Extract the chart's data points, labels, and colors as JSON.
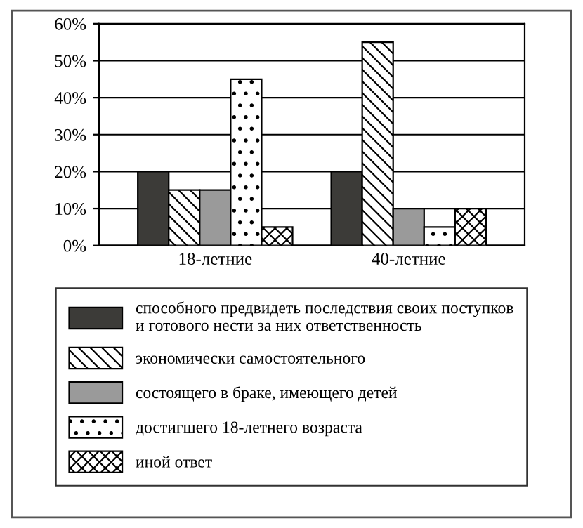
{
  "chart_data": {
    "type": "bar",
    "categories": [
      "18-летние",
      "40-летние"
    ],
    "series": [
      {
        "name": "способного предвидеть последствия своих поступков\nи готового нести за них ответственность",
        "color": "#3c3b38",
        "values": [
          20,
          20
        ]
      },
      {
        "name": "экономически самостоятельного",
        "color": "#000000",
        "values": [
          15,
          55
        ]
      },
      {
        "name": "состоящего в браке, имеющего детей",
        "color": "#9a9a9a",
        "values": [
          15,
          10
        ]
      },
      {
        "name": "достигшего 18-летнего возраста",
        "color": "#000000",
        "values": [
          45,
          5
        ]
      },
      {
        "name": "иной ответ",
        "color": "#000000",
        "values": [
          5,
          10
        ]
      }
    ],
    "ylim": [
      0,
      60
    ],
    "yticks": [
      {
        "value": 0,
        "label": "0%"
      },
      {
        "value": 10,
        "label": "10%"
      },
      {
        "value": 20,
        "label": "20%"
      },
      {
        "value": 30,
        "label": "30%"
      },
      {
        "value": 40,
        "label": "40%"
      },
      {
        "value": 50,
        "label": "50%"
      },
      {
        "value": 60,
        "label": "60%"
      }
    ],
    "grid": "y",
    "legend": "bottom"
  }
}
